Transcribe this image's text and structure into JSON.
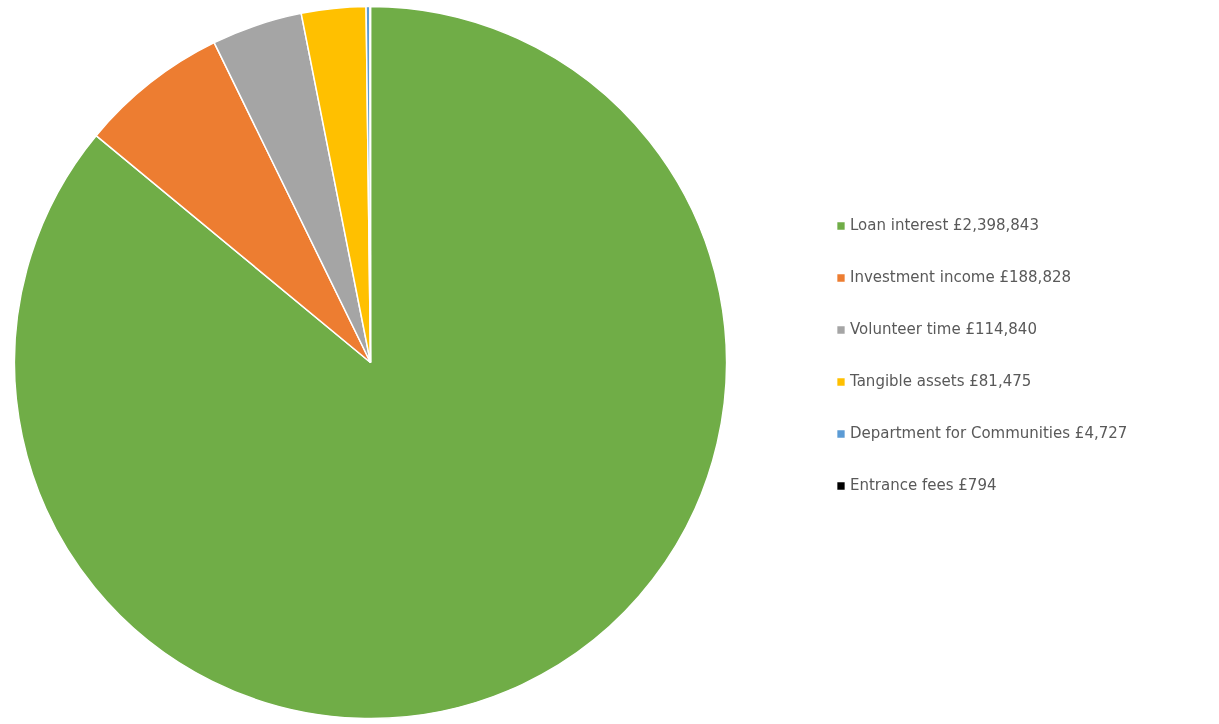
{
  "chart_data": {
    "type": "pie",
    "categories": [
      "Loan interest",
      "Investment income",
      "Volunteer time",
      "Tangible assets",
      "Department for Communities",
      "Entrance fees"
    ],
    "values": [
      2398843,
      188828,
      114840,
      81475,
      4727,
      794
    ],
    "value_labels": [
      "£2,398,843",
      "£188,828",
      "£114,840",
      "£81,475",
      "£4,727",
      "£794"
    ],
    "colors": [
      "#70ad47",
      "#ed7d31",
      "#a5a5a5",
      "#ffc000",
      "#5b9bd5",
      "#000000"
    ],
    "legend": "right"
  }
}
